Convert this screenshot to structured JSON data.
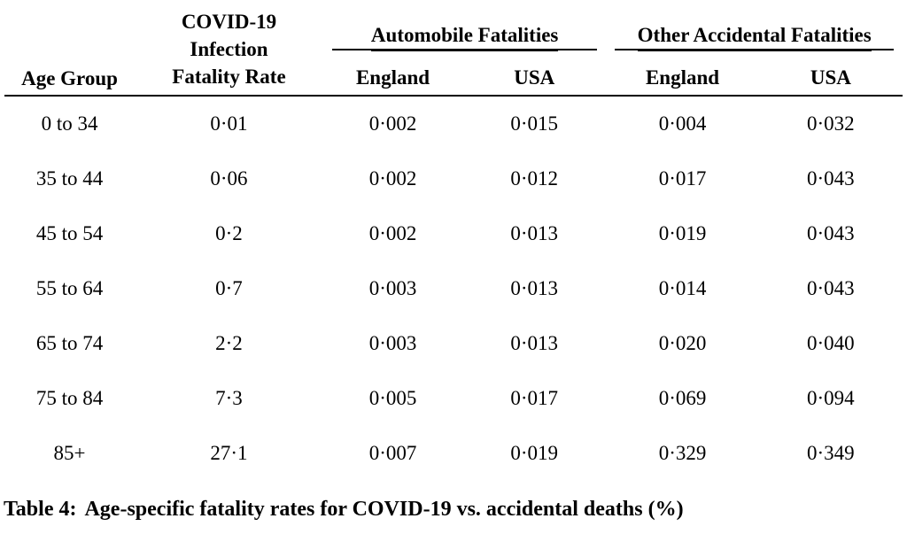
{
  "table": {
    "header": {
      "age_group": "Age Group",
      "ifr_lines": [
        "COVID-19",
        "Infection",
        "Fatality Rate"
      ],
      "groups": [
        {
          "label": "Automobile Fatalities",
          "sub": [
            "England",
            "USA"
          ]
        },
        {
          "label": "Other Accidental Fatalities",
          "sub": [
            "England",
            "USA"
          ]
        }
      ]
    },
    "rows": [
      {
        "age": "0 to 34",
        "ifr": "0·01",
        "auto_england": "0·002",
        "auto_usa": "0·015",
        "other_england": "0·004",
        "other_usa": "0·032"
      },
      {
        "age": "35 to 44",
        "ifr": "0·06",
        "auto_england": "0·002",
        "auto_usa": "0·012",
        "other_england": "0·017",
        "other_usa": "0·043"
      },
      {
        "age": "45 to 54",
        "ifr": "0·2",
        "auto_england": "0·002",
        "auto_usa": "0·013",
        "other_england": "0·019",
        "other_usa": "0·043"
      },
      {
        "age": "55 to 64",
        "ifr": "0·7",
        "auto_england": "0·003",
        "auto_usa": "0·013",
        "other_england": "0·014",
        "other_usa": "0·043"
      },
      {
        "age": "65 to 74",
        "ifr": "2·2",
        "auto_england": "0·003",
        "auto_usa": "0·013",
        "other_england": "0·020",
        "other_usa": "0·040"
      },
      {
        "age": "75 to 84",
        "ifr": "7·3",
        "auto_england": "0·005",
        "auto_usa": "0·017",
        "other_england": "0·069",
        "other_usa": "0·094"
      },
      {
        "age": "85+",
        "ifr": "27·1",
        "auto_england": "0·007",
        "auto_usa": "0·019",
        "other_england": "0·329",
        "other_usa": "0·349"
      }
    ]
  },
  "caption": {
    "label": "Table 4:",
    "text": "Age-specific fatality rates for COVID-19 vs. accidental deaths (%)"
  },
  "chart_data": {
    "type": "table",
    "title": "Table 4: Age-specific fatality rates for COVID-19 vs. accidental deaths (%)",
    "columns": [
      "Age Group",
      "COVID-19 Infection Fatality Rate",
      "Automobile Fatalities - England",
      "Automobile Fatalities - USA",
      "Other Accidental Fatalities - England",
      "Other Accidental Fatalities - USA"
    ],
    "rows": [
      [
        "0 to 34",
        0.01,
        0.002,
        0.015,
        0.004,
        0.032
      ],
      [
        "35 to 44",
        0.06,
        0.002,
        0.012,
        0.017,
        0.043
      ],
      [
        "45 to 54",
        0.2,
        0.002,
        0.013,
        0.019,
        0.043
      ],
      [
        "55 to 64",
        0.7,
        0.003,
        0.013,
        0.014,
        0.043
      ],
      [
        "65 to 74",
        2.2,
        0.003,
        0.013,
        0.02,
        0.04
      ],
      [
        "75 to 84",
        7.3,
        0.005,
        0.017,
        0.069,
        0.094
      ],
      [
        "85+",
        27.1,
        0.007,
        0.019,
        0.329,
        0.349
      ]
    ],
    "notes": "Decimal separator rendered as middle dot (·) in the source image; units are percent."
  }
}
